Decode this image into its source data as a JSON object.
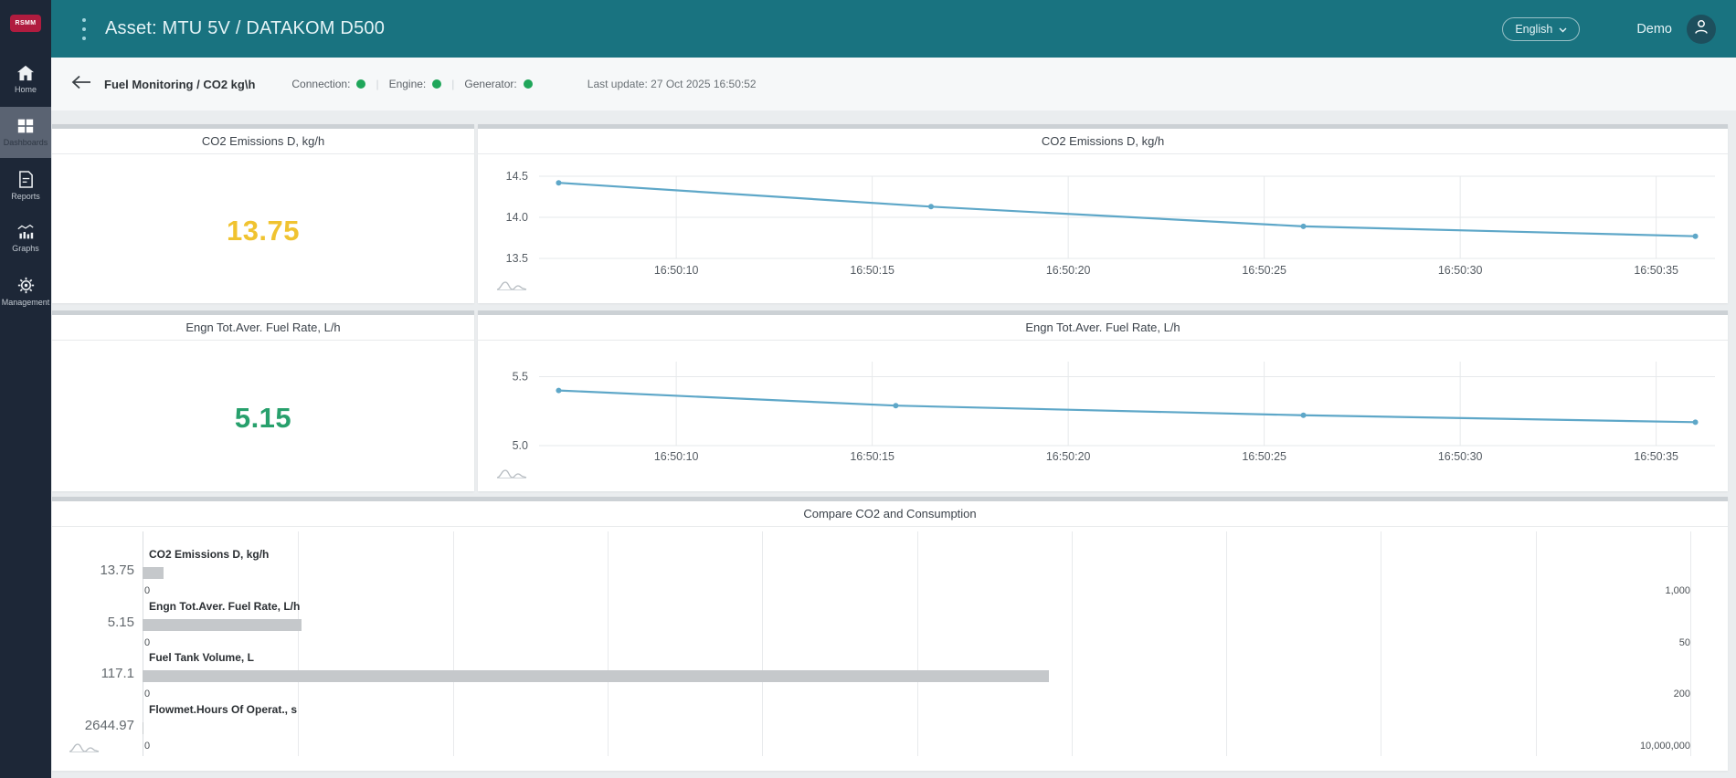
{
  "topbar": {
    "logo": "RSMM",
    "title": "Asset: MTU 5V / DATAKOM D500",
    "language": "English",
    "user": "Demo"
  },
  "sidebar": {
    "items": [
      {
        "label": "Home",
        "icon": "home-icon"
      },
      {
        "label": "Dashboards",
        "icon": "dashboards-icon",
        "active": true
      },
      {
        "label": "Reports",
        "icon": "reports-icon"
      },
      {
        "label": "Graphs",
        "icon": "graphs-icon"
      },
      {
        "label": "Management",
        "icon": "gear-icon"
      }
    ]
  },
  "statusbar": {
    "title": "Fuel Monitoring / CO2 kg\\h",
    "statuses": [
      {
        "label": "Connection:",
        "state_color": "#1fa65a"
      },
      {
        "label": "Engine:",
        "state_color": "#1fa65a"
      },
      {
        "label": "Generator:",
        "state_color": "#1fa65a"
      }
    ],
    "last_update": "Last update: 27 Oct 2025 16:50:52"
  },
  "value_cards": {
    "co2": {
      "title": "CO2 Emissions D, kg/h",
      "value": "13.75",
      "color": "#f0c330"
    },
    "fuel": {
      "title": "Engn Tot.Aver. Fuel Rate, L/h",
      "value": "5.15",
      "color": "#27a06c"
    }
  },
  "chart_data": [
    {
      "type": "line",
      "title": "CO2 Emissions D, kg/h",
      "x_ticks": [
        {
          "t": 10,
          "label": "16:50:10"
        },
        {
          "t": 15,
          "label": "16:50:15"
        },
        {
          "t": 20,
          "label": "16:50:20"
        },
        {
          "t": 25,
          "label": "16:50:25"
        },
        {
          "t": 30,
          "label": "16:50:30"
        },
        {
          "t": 35,
          "label": "16:50:35"
        }
      ],
      "x_domain": [
        6.5,
        36.5
      ],
      "y_ticks": [
        {
          "v": 13.5,
          "label": "13.5"
        },
        {
          "v": 14.0,
          "label": "14.0"
        },
        {
          "v": 14.5,
          "label": "14.5"
        }
      ],
      "ylim": [
        13.5,
        14.7
      ],
      "points": [
        [
          7,
          14.42
        ],
        [
          16.5,
          14.13
        ],
        [
          26,
          13.89
        ],
        [
          36,
          13.77
        ]
      ],
      "line_color": "#5ea7c8",
      "grid": true,
      "legend": "none"
    },
    {
      "type": "line",
      "title": "Engn Tot.Aver. Fuel Rate, L/h",
      "x_ticks": [
        {
          "t": 10,
          "label": "16:50:10"
        },
        {
          "t": 15,
          "label": "16:50:15"
        },
        {
          "t": 20,
          "label": "16:50:20"
        },
        {
          "t": 25,
          "label": "16:50:25"
        },
        {
          "t": 30,
          "label": "16:50:30"
        },
        {
          "t": 35,
          "label": "16:50:35"
        }
      ],
      "x_domain": [
        6.5,
        36.5
      ],
      "y_ticks": [
        {
          "v": 5.0,
          "label": "5.0"
        },
        {
          "v": 5.5,
          "label": "5.5"
        }
      ],
      "ylim": [
        5.0,
        5.72
      ],
      "points": [
        [
          7,
          5.4
        ],
        [
          15.6,
          5.29
        ],
        [
          26,
          5.22
        ],
        [
          36,
          5.17
        ]
      ],
      "line_color": "#5ea7c8",
      "grid": true,
      "legend": "none"
    },
    {
      "type": "bar",
      "orientation": "horizontal",
      "title": "Compare CO2 and Consumption",
      "gridline_intervals": 10,
      "bar_color": "#c5c8cb",
      "rows": [
        {
          "label": "CO2 Emissions D, kg/h",
          "value": 13.75,
          "value_label": "13.75",
          "min_label": "0",
          "max": 1000,
          "max_label": "1,000"
        },
        {
          "label": "Engn Tot.Aver. Fuel Rate, L/h",
          "value": 5.15,
          "value_label": "5.15",
          "min_label": "0",
          "max": 50,
          "max_label": "50"
        },
        {
          "label": "Fuel Tank Volume, L",
          "value": 117.1,
          "value_label": "117.1",
          "min_label": "0",
          "max": 200,
          "max_label": "200"
        },
        {
          "label": "Flowmet.Hours Of Operat., s",
          "value": 2644.97,
          "value_label": "2644.97",
          "min_label": "0",
          "max": 10000000,
          "max_label": "10,000,000"
        }
      ]
    }
  ]
}
